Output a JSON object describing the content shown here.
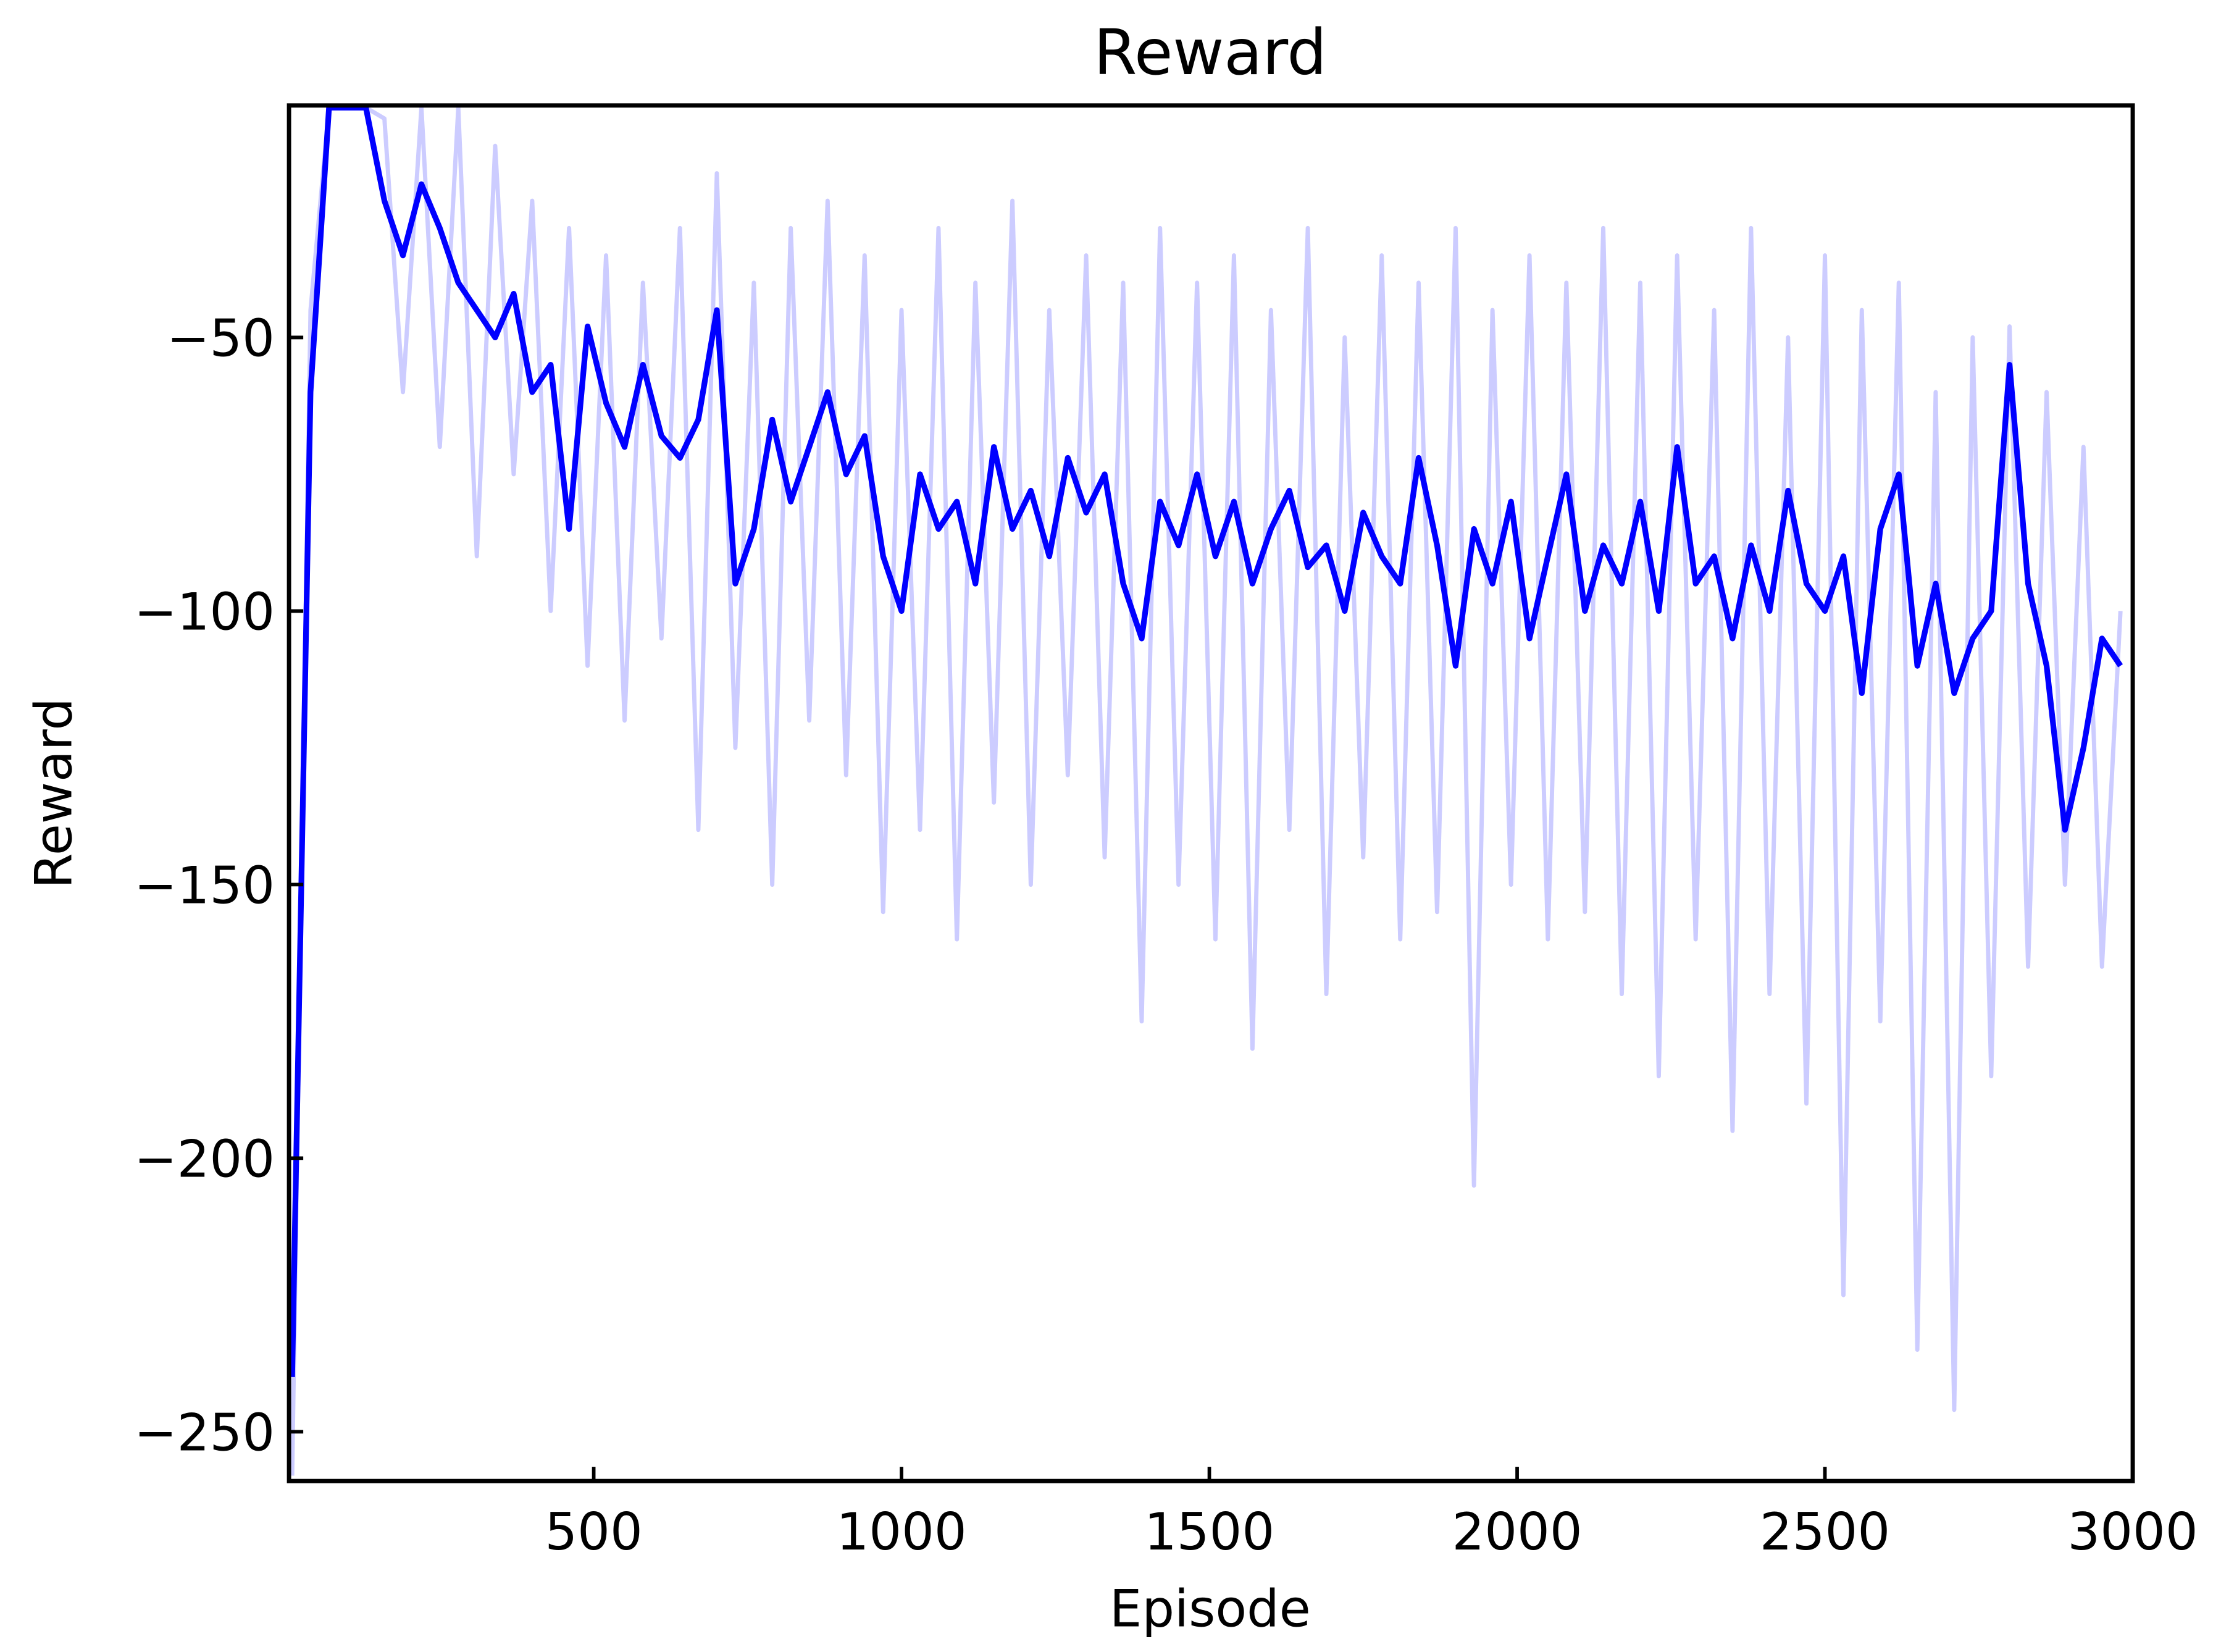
{
  "chart_data": {
    "type": "line",
    "title": "Reward",
    "x_label": "Episode",
    "y_label": "Reward",
    "x": [
      10,
      40,
      70,
      100,
      130,
      160,
      190,
      220,
      250,
      280,
      310,
      340,
      370,
      400,
      430,
      460,
      490,
      520,
      550,
      580,
      610,
      640,
      670,
      700,
      730,
      760,
      790,
      820,
      850,
      880,
      910,
      940,
      970,
      1000,
      1030,
      1060,
      1090,
      1120,
      1150,
      1180,
      1210,
      1240,
      1270,
      1300,
      1330,
      1360,
      1390,
      1420,
      1450,
      1480,
      1510,
      1540,
      1570,
      1600,
      1630,
      1660,
      1690,
      1720,
      1750,
      1780,
      1810,
      1840,
      1870,
      1900,
      1930,
      1960,
      1990,
      2020,
      2050,
      2080,
      2110,
      2140,
      2170,
      2200,
      2230,
      2260,
      2290,
      2320,
      2350,
      2380,
      2410,
      2440,
      2470,
      2500,
      2530,
      2560,
      2590,
      2620,
      2650,
      2680,
      2710,
      2740,
      2770,
      2800,
      2830,
      2860,
      2890,
      2920,
      2950,
      2980
    ],
    "series": [
      {
        "color": "#ccccff",
        "values": [
          -258,
          -45,
          -8,
          -8,
          -8,
          -10,
          -60,
          -8,
          -70,
          -8,
          -90,
          -15,
          -75,
          -25,
          -100,
          -30,
          -110,
          -35,
          -120,
          -40,
          -105,
          -30,
          -140,
          -20,
          -125,
          -40,
          -150,
          -30,
          -120,
          -25,
          -130,
          -35,
          -155,
          -45,
          -140,
          -30,
          -160,
          -40,
          -135,
          -25,
          -150,
          -45,
          -130,
          -35,
          -145,
          -40,
          -175,
          -30,
          -150,
          -40,
          -160,
          -35,
          -180,
          -45,
          -140,
          -30,
          -170,
          -50,
          -145,
          -35,
          -160,
          -40,
          -155,
          -30,
          -205,
          -45,
          -150,
          -35,
          -160,
          -40,
          -155,
          -30,
          -170,
          -40,
          -185,
          -35,
          -160,
          -45,
          -195,
          -30,
          -170,
          -50,
          -190,
          -35,
          -225,
          -45,
          -175,
          -40,
          -235,
          -60,
          -246,
          -50,
          -185,
          -48,
          -165,
          -60,
          -150,
          -70,
          -165,
          -100
        ]
      },
      {
        "color": "#0000ff",
        "values": [
          -240,
          -60,
          -8,
          -8,
          -8,
          -25,
          -35,
          -22,
          -30,
          -40,
          -45,
          -50,
          -42,
          -60,
          -55,
          -85,
          -48,
          -62,
          -70,
          -55,
          -68,
          -72,
          -65,
          -45,
          -95,
          -85,
          -65,
          -80,
          -70,
          -60,
          -75,
          -68,
          -90,
          -100,
          -75,
          -85,
          -80,
          -95,
          -70,
          -85,
          -78,
          -90,
          -72,
          -82,
          -75,
          -95,
          -105,
          -80,
          -88,
          -75,
          -90,
          -80,
          -95,
          -85,
          -78,
          -92,
          -88,
          -100,
          -82,
          -90,
          -95,
          -72,
          -88,
          -110,
          -85,
          -95,
          -80,
          -105,
          -90,
          -75,
          -100,
          -88,
          -95,
          -80,
          -100,
          -70,
          -95,
          -90,
          -105,
          -88,
          -100,
          -78,
          -95,
          -100,
          -90,
          -115,
          -85,
          -75,
          -110,
          -95,
          -115,
          -105,
          -100,
          -55,
          -95,
          -110,
          -140,
          -125,
          -105,
          -110
        ]
      }
    ],
    "xlim": [
      5,
      3000
    ],
    "ylim": [
      -259,
      -7.6
    ],
    "xticks": [
      500,
      1000,
      1500,
      2000,
      2500,
      3000
    ],
    "yticks": [
      {
        "value": -250,
        "label": "−250"
      },
      {
        "value": -200,
        "label": "−200"
      },
      {
        "value": -150,
        "label": "−150"
      },
      {
        "value": -100,
        "label": "−100"
      },
      {
        "value": -50,
        "label": "−50"
      }
    ]
  }
}
